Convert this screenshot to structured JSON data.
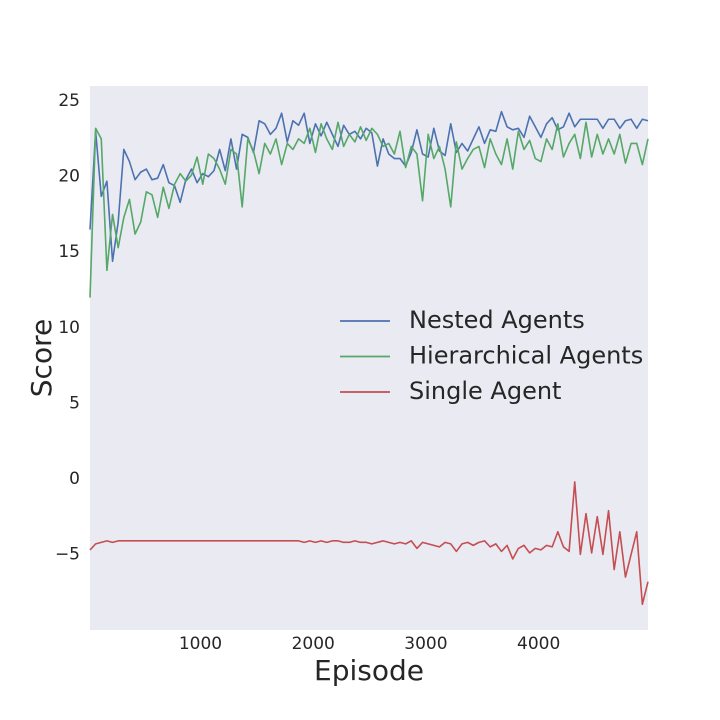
{
  "chart_data": {
    "type": "line",
    "xlabel": "Episode",
    "ylabel": "Score",
    "x": [
      20,
      70,
      120,
      170,
      220,
      270,
      320,
      370,
      420,
      470,
      520,
      570,
      620,
      670,
      720,
      770,
      820,
      870,
      920,
      970,
      1020,
      1070,
      1120,
      1170,
      1220,
      1270,
      1320,
      1370,
      1420,
      1470,
      1520,
      1570,
      1620,
      1670,
      1720,
      1770,
      1820,
      1870,
      1920,
      1970,
      2020,
      2070,
      2120,
      2170,
      2220,
      2270,
      2320,
      2370,
      2420,
      2470,
      2520,
      2570,
      2620,
      2670,
      2720,
      2770,
      2820,
      2870,
      2920,
      2970,
      3020,
      3070,
      3120,
      3170,
      3220,
      3270,
      3320,
      3370,
      3420,
      3470,
      3520,
      3570,
      3620,
      3670,
      3720,
      3770,
      3820,
      3870,
      3920,
      3970,
      4020,
      4070,
      4120,
      4170,
      4220,
      4270,
      4320,
      4370,
      4420,
      4470,
      4520,
      4570,
      4620,
      4670,
      4720,
      4770,
      4820,
      4870,
      4920,
      4970
    ],
    "series": [
      {
        "name": "Nested Agents",
        "color": "#4c72b0",
        "values": [
          16.5,
          23,
          18.7,
          19.7,
          14.4,
          17,
          21.8,
          21,
          19.8,
          20.3,
          20.5,
          19.8,
          19.9,
          20.8,
          19.6,
          19.4,
          18.3,
          19.8,
          20.5,
          19.6,
          20.2,
          20,
          20.4,
          21.8,
          20.4,
          22.5,
          20.5,
          22.8,
          22.6,
          21.6,
          23.7,
          23.5,
          22.8,
          23.2,
          24.2,
          22.3,
          23.7,
          23.4,
          24.2,
          22.2,
          23.5,
          22.7,
          23.6,
          22.8,
          22,
          23.4,
          22.8,
          23,
          22.5,
          23.2,
          22.9,
          20.7,
          22.5,
          21.5,
          21.2,
          21.2,
          20.7,
          21.6,
          23.1,
          21.5,
          21.3,
          23.2,
          21.7,
          21.4,
          23.5,
          21.6,
          22.2,
          21.7,
          22.5,
          23.3,
          22.2,
          23.1,
          23,
          24.3,
          23.3,
          23.1,
          23.2,
          22.6,
          24,
          23.3,
          22.6,
          23.5,
          23.9,
          23.1,
          23.3,
          24.2,
          23.3,
          23.8,
          23.8,
          23.8,
          23.8,
          23.2,
          23.8,
          23.8,
          23.2,
          23.7,
          23.8,
          23.2,
          23.8,
          23.7
        ]
      },
      {
        "name": "Hierarchical Agents",
        "color": "#55a868",
        "values": [
          12,
          23.2,
          22.5,
          13.8,
          17.5,
          15.3,
          17.3,
          18.5,
          16.2,
          17,
          19,
          18.8,
          17.3,
          19.3,
          17.9,
          19.5,
          20.2,
          19.7,
          20.1,
          21.3,
          19.5,
          21.5,
          21.2,
          20.5,
          19.5,
          21.8,
          21.5,
          18,
          22.5,
          21.7,
          20.2,
          22.2,
          21.5,
          22.5,
          20.8,
          22.2,
          21.8,
          22.5,
          22.2,
          23.2,
          21.6,
          23.5,
          22.5,
          21.8,
          23.6,
          22,
          22.8,
          22.3,
          23.3,
          22.4,
          23.2,
          22.8,
          22,
          22.2,
          21.5,
          23,
          20.6,
          22,
          21.5,
          18.4,
          22.8,
          21.2,
          22,
          20.5,
          18,
          22.3,
          20.5,
          21.2,
          21.8,
          22,
          20.6,
          22.5,
          21.5,
          20.8,
          22.5,
          20.5,
          23,
          21.8,
          22.4,
          21.2,
          21,
          22.5,
          21.8,
          23.5,
          21.3,
          22.2,
          22.8,
          21.2,
          23.6,
          21.3,
          22.8,
          21.5,
          22.5,
          21.5,
          22.8,
          20.9,
          22.2,
          22.2,
          20.8,
          22.5
        ]
      },
      {
        "name": "Single Agent",
        "color": "#c44e52",
        "values": [
          -4.7,
          -4.3,
          -4.2,
          -4.1,
          -4.2,
          -4.1,
          -4.1,
          -4.1,
          -4.1,
          -4.1,
          -4.1,
          -4.1,
          -4.1,
          -4.1,
          -4.1,
          -4.1,
          -4.1,
          -4.1,
          -4.1,
          -4.1,
          -4.1,
          -4.1,
          -4.1,
          -4.1,
          -4.1,
          -4.1,
          -4.1,
          -4.1,
          -4.1,
          -4.1,
          -4.1,
          -4.1,
          -4.1,
          -4.1,
          -4.1,
          -4.1,
          -4.1,
          -4.1,
          -4.2,
          -4.1,
          -4.2,
          -4.1,
          -4.2,
          -4.1,
          -4.1,
          -4.2,
          -4.2,
          -4.1,
          -4.2,
          -4.2,
          -4.3,
          -4.2,
          -4.1,
          -4.2,
          -4.3,
          -4.2,
          -4.3,
          -4.1,
          -4.6,
          -4.2,
          -4.3,
          -4.4,
          -4.5,
          -4.2,
          -4.3,
          -4.8,
          -4.3,
          -4.2,
          -4.4,
          -4.2,
          -4.1,
          -4.5,
          -4.3,
          -4.8,
          -4.4,
          -5.3,
          -4.6,
          -4.4,
          -4.9,
          -4.6,
          -4.7,
          -4.4,
          -4.5,
          -3.5,
          -4.5,
          -4.8,
          -0.2,
          -5,
          -2.3,
          -4.9,
          -2.5,
          -5,
          -2.1,
          -6,
          -3.5,
          -6.5,
          -5,
          -3.5,
          -8.3,
          -6.8
        ]
      }
    ],
    "xlim": [
      20,
      4970
    ],
    "ylim": [
      -10,
      26
    ],
    "xticks": [
      1000,
      2000,
      3000,
      4000
    ],
    "yticks": [
      {
        "value": -5,
        "label": "−5"
      },
      0,
      5,
      10,
      15,
      20,
      25
    ],
    "grid": false,
    "legend": "center right",
    "background": "#eaeaf2"
  }
}
